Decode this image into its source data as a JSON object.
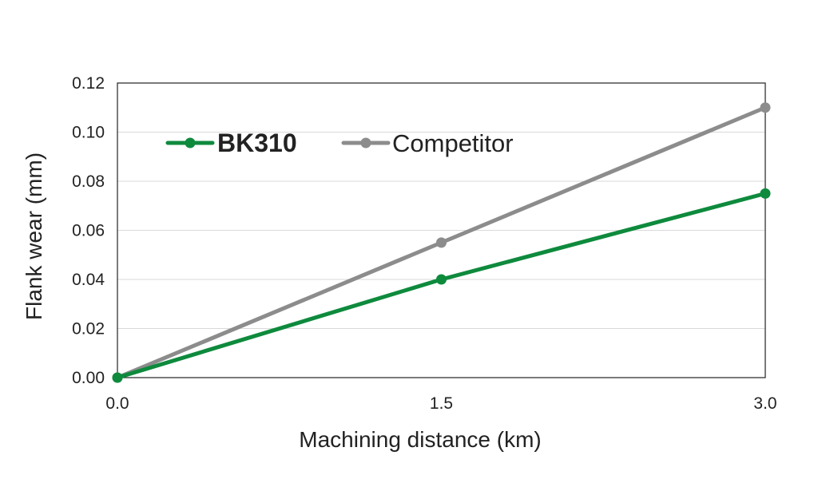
{
  "chart_data": {
    "type": "line",
    "title": "",
    "xlabel": "Machining distance  (km)",
    "ylabel": "Flank wear  (mm)",
    "x": [
      0.0,
      1.5,
      3.0
    ],
    "x_tick_labels": [
      "0.0",
      "1.5",
      "3.0"
    ],
    "y_tick_labels": [
      "0.00",
      "0.02",
      "0.04",
      "0.06",
      "0.08",
      "0.10",
      "0.12"
    ],
    "xlim": [
      0,
      3
    ],
    "ylim": [
      0,
      0.12
    ],
    "grid": true,
    "legend_position": "top-left",
    "series": [
      {
        "name": "BK310",
        "values": [
          0.0,
          0.04,
          0.075
        ],
        "color": "#0e8a3d",
        "bold_label": true
      },
      {
        "name": "Competitor",
        "values": [
          0.0,
          0.055,
          0.11
        ],
        "color": "#8c8c8c",
        "bold_label": false
      }
    ]
  }
}
